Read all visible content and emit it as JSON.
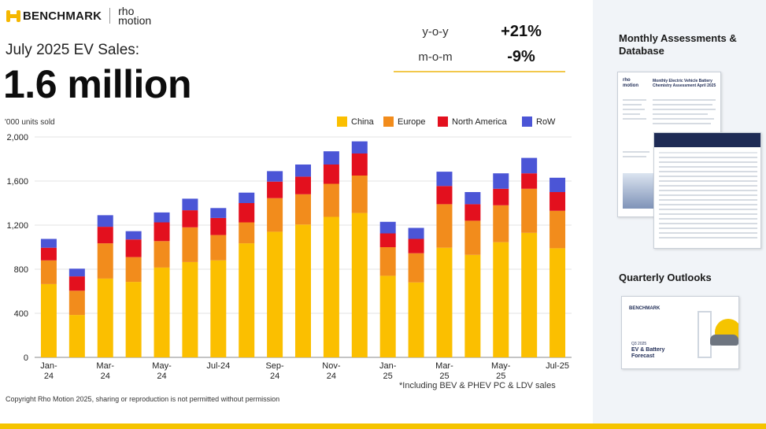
{
  "header": {
    "brand_name": "BENCHMARK",
    "partner_name": "rho motion",
    "subtitle": "July 2025 EV Sales:",
    "headline": "1.6 million"
  },
  "stats": [
    {
      "label": "y-o-y",
      "value": "+21%"
    },
    {
      "label": "m-o-m",
      "value": "-9%"
    }
  ],
  "colors": {
    "china": "#fbbf00",
    "europe": "#f28c1c",
    "north_america": "#e3101e",
    "row": "#4b55d6",
    "accent": "#f5c400"
  },
  "chart_data": {
    "type": "bar",
    "stacked": true,
    "title": "",
    "ylabel": "'000 units sold",
    "xlabel": "",
    "ylim": [
      0,
      2000
    ],
    "yticks": [
      0,
      400,
      800,
      1200,
      1600,
      2000
    ],
    "ytick_labels": [
      "0",
      "400",
      "800",
      "1,200",
      "1,600",
      "2,000"
    ],
    "grid": true,
    "legend_position": "top-right",
    "categories": [
      "Jan-24",
      "Feb-24",
      "Mar-24",
      "Apr-24",
      "May-24",
      "Jun-24",
      "Jul-24",
      "Aug-24",
      "Sep-24",
      "Oct-24",
      "Nov-24",
      "Dec-24",
      "Jan-25",
      "Feb-25",
      "Mar-25",
      "Apr-25",
      "May-25",
      "Jun-25",
      "Jul-25"
    ],
    "tick_labels": [
      {
        "index": 0,
        "lines": [
          "Jan-",
          "24"
        ]
      },
      {
        "index": 2,
        "lines": [
          "Mar-",
          "24"
        ]
      },
      {
        "index": 4,
        "lines": [
          "May-",
          "24"
        ]
      },
      {
        "index": 6,
        "lines": [
          "Jul-24"
        ]
      },
      {
        "index": 8,
        "lines": [
          "Sep-",
          "24"
        ]
      },
      {
        "index": 10,
        "lines": [
          "Nov-",
          "24"
        ]
      },
      {
        "index": 12,
        "lines": [
          "Jan-",
          "25"
        ]
      },
      {
        "index": 14,
        "lines": [
          "Mar-",
          "25"
        ]
      },
      {
        "index": 16,
        "lines": [
          "May-",
          "25"
        ]
      },
      {
        "index": 18,
        "lines": [
          "Jul-25"
        ]
      }
    ],
    "series": [
      {
        "name": "China",
        "color_key": "china",
        "values": [
          665,
          385,
          715,
          685,
          815,
          865,
          880,
          1035,
          1140,
          1205,
          1275,
          1310,
          740,
          680,
          995,
          930,
          1045,
          1130,
          990
        ]
      },
      {
        "name": "Europe",
        "color_key": "europe",
        "values": [
          215,
          220,
          320,
          225,
          240,
          315,
          230,
          190,
          305,
          275,
          300,
          340,
          260,
          265,
          395,
          310,
          335,
          400,
          340
        ]
      },
      {
        "name": "North America",
        "color_key": "north_america",
        "values": [
          115,
          130,
          150,
          160,
          170,
          155,
          155,
          175,
          150,
          160,
          175,
          200,
          125,
          130,
          165,
          150,
          150,
          140,
          170
        ]
      },
      {
        "name": "RoW",
        "color_key": "row",
        "values": [
          80,
          70,
          105,
          75,
          90,
          105,
          90,
          95,
          95,
          110,
          120,
          110,
          105,
          100,
          130,
          110,
          140,
          140,
          130
        ]
      }
    ],
    "footnote": "*Including BEV & PHEV PC & LDV sales"
  },
  "footer": {
    "copyright": "Copyright Rho Motion 2025, sharing or reproduction is not permitted without permission"
  },
  "side_panel": {
    "monthly_title": "Monthly Assessments & Database",
    "quarterly_title": "Quarterly Outlooks",
    "doc1_heading": "Monthly Electric Vehicle Battery Chemistry Assessment April 2025",
    "doc3_logo": "BENCHMARK",
    "doc3_quarter": "Q3 2025",
    "doc3_title": "EV & Battery Forecast"
  }
}
